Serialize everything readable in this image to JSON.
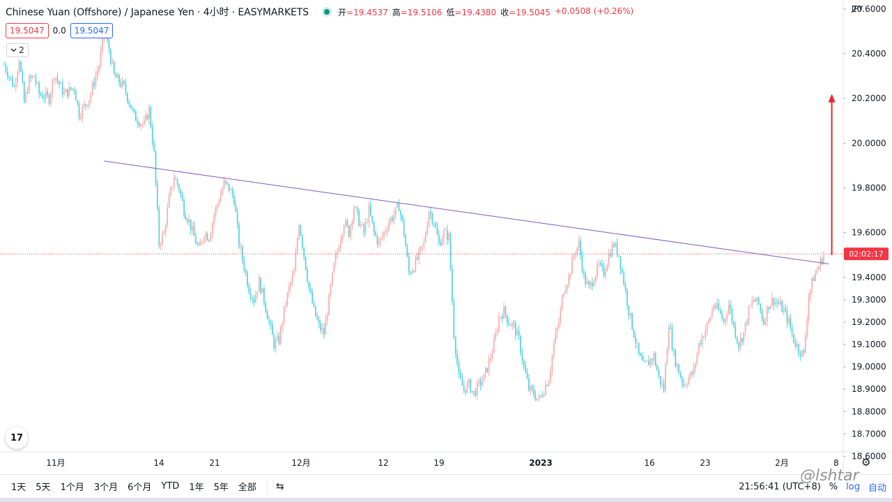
{
  "header": {
    "title": "Chinese Yuan (Offshore) / Japanese Yen · 4小时 · EASYMARKETS",
    "ohlc": [
      {
        "label": "开",
        "value": "=19.4537"
      },
      {
        "label": "高",
        "value": "=19.5106"
      },
      {
        "label": "低",
        "value": "=19.4380"
      },
      {
        "label": "收",
        "value": "=19.5045"
      },
      {
        "label": "",
        "value": "+0.0508 (+0.26%)"
      }
    ]
  },
  "price_row": {
    "bid": "19.5047",
    "spread": "0.0",
    "ask": "19.5047"
  },
  "indicator_collapse": {
    "count": "2",
    "icon": "chevron-down-icon"
  },
  "currency_label": "JPY",
  "logo_text": "17",
  "toolbar": {
    "timeframes": [
      "1天",
      "5天",
      "1个月",
      "3个月",
      "6个月",
      "YTD",
      "1年",
      "5年",
      "全部"
    ],
    "clock": "21:56:41 (UTC+8)",
    "percent": "%",
    "log": "log",
    "auto": "自动"
  },
  "watermark": "@lshtar",
  "colors": {
    "up": "#f7a9a7",
    "down": "#4dd0e1",
    "trendline": "#7e57c2",
    "arrow": "#f22222",
    "last_price_label": "#f23645"
  },
  "chart_data": {
    "type": "candlestick",
    "title": "Chinese Yuan (Offshore) / Japanese Yen",
    "symbol": "CNHJPY",
    "timeframe": "4小时",
    "exchange": "EASYMARKETS",
    "yaxis": {
      "min": 18.62,
      "max": 20.64,
      "ticks": [
        20.6,
        20.4,
        20.2,
        20.0,
        19.8,
        19.6,
        19.4,
        19.3,
        19.2,
        19.1,
        19.0,
        18.9,
        18.8,
        18.7,
        18.6
      ],
      "tick_labels": [
        "20.6000",
        "20.4000",
        "20.2000",
        "20.0000",
        "19.8000",
        "19.6000",
        "19.4000",
        "19.3000",
        "19.2000",
        "19.1000",
        "19.0000",
        "18.9000",
        "18.8000",
        "18.7000",
        "18.6000"
      ]
    },
    "xaxis": {
      "labels": [
        "11月",
        "14",
        "21",
        "12月",
        "12",
        "19",
        "2023",
        "16",
        "23",
        "2月",
        "8"
      ]
    },
    "last_price_label": "02:02:17",
    "last_price": 19.505,
    "close_path": [
      [
        0,
        20.35
      ],
      [
        2,
        20.25
      ],
      [
        3,
        20.38
      ],
      [
        4,
        20.18
      ],
      [
        5,
        20.28
      ],
      [
        6,
        20.3
      ],
      [
        7,
        20.22
      ],
      [
        9,
        20.2
      ],
      [
        10,
        20.31
      ],
      [
        12,
        20.22
      ],
      [
        14,
        20.25
      ],
      [
        15,
        20.13
      ],
      [
        17,
        20.2
      ],
      [
        19,
        20.35
      ],
      [
        20,
        20.5
      ],
      [
        21,
        20.42
      ],
      [
        22,
        20.3
      ],
      [
        24,
        20.25
      ],
      [
        26,
        20.12
      ],
      [
        28,
        20.08
      ],
      [
        29,
        20.15
      ],
      [
        30,
        19.95
      ],
      [
        31,
        19.55
      ],
      [
        32,
        19.6
      ],
      [
        33,
        19.75
      ],
      [
        34,
        19.85
      ],
      [
        35,
        19.8
      ],
      [
        36,
        19.7
      ],
      [
        37,
        19.65
      ],
      [
        38,
        19.58
      ],
      [
        39,
        19.52
      ],
      [
        40,
        19.6
      ],
      [
        41,
        19.58
      ],
      [
        42,
        19.68
      ],
      [
        43,
        19.75
      ],
      [
        44,
        19.82
      ],
      [
        45,
        19.8
      ],
      [
        46,
        19.75
      ],
      [
        47,
        19.55
      ],
      [
        48,
        19.45
      ],
      [
        49,
        19.35
      ],
      [
        50,
        19.3
      ],
      [
        51,
        19.38
      ],
      [
        52,
        19.3
      ],
      [
        53,
        19.2
      ],
      [
        54,
        19.1
      ],
      [
        55,
        19.12
      ],
      [
        56,
        19.25
      ],
      [
        57,
        19.35
      ],
      [
        58,
        19.42
      ],
      [
        59,
        19.65
      ],
      [
        60,
        19.5
      ],
      [
        61,
        19.35
      ],
      [
        62,
        19.25
      ],
      [
        63,
        19.18
      ],
      [
        64,
        19.15
      ],
      [
        65,
        19.3
      ],
      [
        66,
        19.45
      ],
      [
        67,
        19.55
      ],
      [
        68,
        19.65
      ],
      [
        69,
        19.6
      ],
      [
        70,
        19.72
      ],
      [
        71,
        19.65
      ],
      [
        72,
        19.6
      ],
      [
        73,
        19.7
      ],
      [
        74,
        19.6
      ],
      [
        75,
        19.55
      ],
      [
        76,
        19.6
      ],
      [
        77,
        19.65
      ],
      [
        78,
        19.68
      ],
      [
        79,
        19.72
      ],
      [
        80,
        19.6
      ],
      [
        81,
        19.42
      ],
      [
        82,
        19.45
      ],
      [
        83,
        19.5
      ],
      [
        84,
        19.55
      ],
      [
        85,
        19.7
      ],
      [
        86,
        19.65
      ],
      [
        87,
        19.55
      ],
      [
        88,
        19.6
      ],
      [
        89,
        19.58
      ],
      [
        90,
        19.15
      ],
      [
        91,
        18.95
      ],
      [
        92,
        18.9
      ],
      [
        93,
        18.92
      ],
      [
        94,
        18.88
      ],
      [
        95,
        18.92
      ],
      [
        96,
        18.95
      ],
      [
        97,
        19.02
      ],
      [
        98,
        19.1
      ],
      [
        99,
        19.22
      ],
      [
        100,
        19.25
      ],
      [
        101,
        19.2
      ],
      [
        102,
        19.18
      ],
      [
        103,
        19.12
      ],
      [
        104,
        19.0
      ],
      [
        105,
        18.9
      ],
      [
        106,
        18.88
      ],
      [
        107,
        18.85
      ],
      [
        108,
        18.9
      ],
      [
        109,
        18.95
      ],
      [
        110,
        19.1
      ],
      [
        111,
        19.2
      ],
      [
        112,
        19.35
      ],
      [
        113,
        19.4
      ],
      [
        114,
        19.5
      ],
      [
        115,
        19.55
      ],
      [
        116,
        19.4
      ],
      [
        117,
        19.35
      ],
      [
        118,
        19.4
      ],
      [
        119,
        19.45
      ],
      [
        120,
        19.42
      ],
      [
        121,
        19.5
      ],
      [
        122,
        19.55
      ],
      [
        123,
        19.5
      ],
      [
        124,
        19.38
      ],
      [
        125,
        19.25
      ],
      [
        126,
        19.15
      ],
      [
        127,
        19.05
      ],
      [
        128,
        19.0
      ],
      [
        129,
        19.02
      ],
      [
        130,
        19.05
      ],
      [
        131,
        18.95
      ],
      [
        132,
        18.9
      ],
      [
        133,
        19.2
      ],
      [
        134,
        19.05
      ],
      [
        135,
        18.98
      ],
      [
        136,
        18.92
      ],
      [
        137,
        18.95
      ],
      [
        138,
        18.98
      ],
      [
        139,
        19.1
      ],
      [
        140,
        19.15
      ],
      [
        141,
        19.2
      ],
      [
        142,
        19.28
      ],
      [
        143,
        19.25
      ],
      [
        144,
        19.2
      ],
      [
        145,
        19.28
      ],
      [
        146,
        19.18
      ],
      [
        147,
        19.1
      ],
      [
        148,
        19.15
      ],
      [
        149,
        19.25
      ],
      [
        150,
        19.3
      ],
      [
        151,
        19.28
      ],
      [
        152,
        19.2
      ],
      [
        153,
        19.28
      ],
      [
        154,
        19.3
      ],
      [
        155,
        19.28
      ],
      [
        156,
        19.25
      ],
      [
        157,
        19.2
      ],
      [
        158,
        19.12
      ],
      [
        159,
        19.08
      ],
      [
        160,
        19.05
      ],
      [
        161,
        19.32
      ],
      [
        162,
        19.4
      ],
      [
        163,
        19.45
      ],
      [
        164,
        19.5
      ]
    ],
    "trendline": {
      "start": {
        "bar": 20,
        "price": 19.92
      },
      "end": {
        "bar": 165,
        "price": 19.46
      }
    },
    "arrow": {
      "bar": 164.5,
      "from_price": 19.5,
      "to_price": 20.22
    }
  }
}
